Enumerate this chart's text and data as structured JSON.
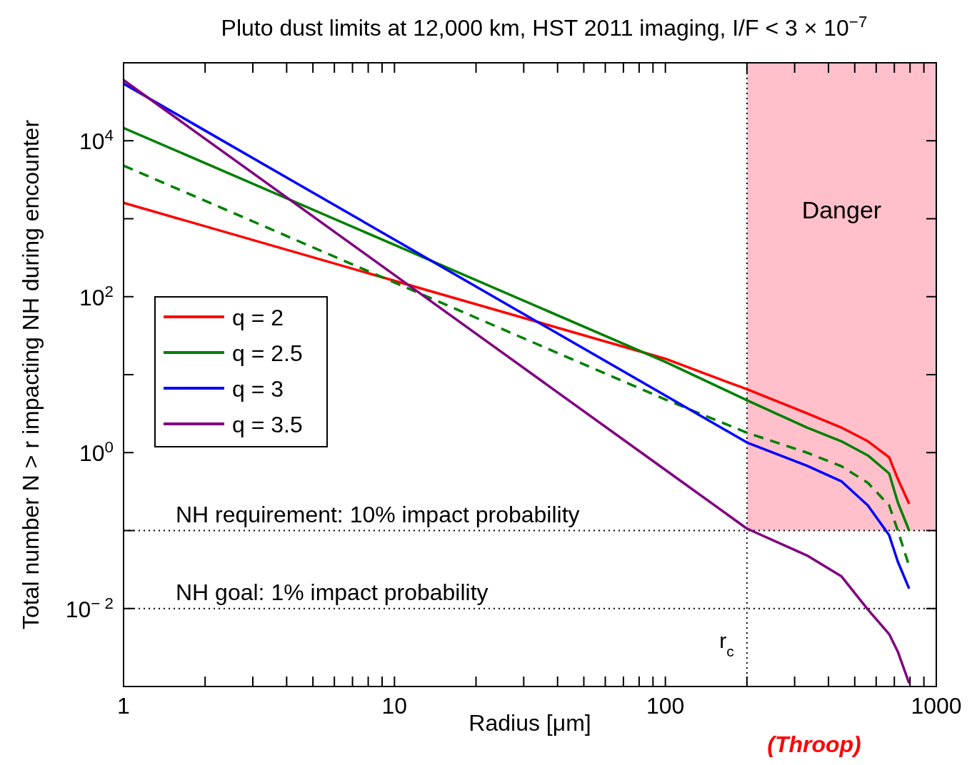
{
  "chart_data": {
    "type": "line",
    "title": "Pluto dust limits at 12,000 km, HST 2011 imaging, I/F < 3 × 10$^{−7}$",
    "xlabel": "Radius [μm]",
    "ylabel": "Total number N > r impacting NH during encounter",
    "log": "xy",
    "grid": false,
    "legend": "left",
    "xlim": [
      1,
      1000
    ],
    "ylim": [
      0.001,
      100000
    ],
    "xticks": [
      1,
      {
        "value": 2,
        "label": null
      },
      {
        "value": 3,
        "label": null
      },
      {
        "value": 4,
        "label": null
      },
      {
        "value": 5,
        "label": null
      },
      {
        "value": 6,
        "label": null
      },
      {
        "value": 7,
        "label": null
      },
      {
        "value": 8,
        "label": null
      },
      {
        "value": 9,
        "label": null
      },
      10,
      {
        "value": 20,
        "label": null
      },
      {
        "value": 30,
        "label": null
      },
      {
        "value": 40,
        "label": null
      },
      {
        "value": 50,
        "label": null
      },
      {
        "value": 60,
        "label": null
      },
      {
        "value": 70,
        "label": null
      },
      {
        "value": 80,
        "label": null
      },
      {
        "value": 90,
        "label": null
      },
      100,
      {
        "value": 200,
        "label": null
      },
      {
        "value": 300,
        "label": null
      },
      {
        "value": 400,
        "label": null
      },
      {
        "value": 500,
        "label": null
      },
      {
        "value": 600,
        "label": null
      },
      {
        "value": 700,
        "label": null
      },
      {
        "value": 800,
        "label": null
      },
      {
        "value": 900,
        "label": null
      },
      1000
    ],
    "yticks": [
      {
        "value": 0.001,
        "label": null
      },
      {
        "value": 0.01,
        "label": "10$^{− 2}$"
      },
      {
        "value": 0.1,
        "label": null
      },
      {
        "value": 1,
        "label": "10$^{0}$"
      },
      {
        "value": 10,
        "label": null
      },
      {
        "value": 100,
        "label": "10$^{2}$"
      },
      {
        "value": 1000,
        "label": null
      },
      {
        "value": 10000,
        "label": "10$^{4}$"
      },
      {
        "value": 100000,
        "label": null
      }
    ],
    "series": [
      {
        "name": "q = 2",
        "color": "#ff0000",
        "line_style": "solid",
        "x": [
          1,
          10,
          100,
          200,
          333,
          446,
          559,
          670,
          721,
          794
        ],
        "values": [
          1600,
          160,
          16,
          6.5,
          3.2,
          2.1,
          1.4,
          0.87,
          0.46,
          0.22
        ]
      },
      {
        "name": "q = 2.5",
        "color": "#008000",
        "line_style": "solid",
        "x": [
          1,
          10,
          100,
          200,
          333,
          446,
          559,
          670,
          721,
          794
        ],
        "values": [
          14600,
          462,
          14.6,
          4.7,
          2.1,
          1.4,
          0.92,
          0.54,
          0.23,
          0.1
        ]
      },
      {
        "color": "#008000",
        "line_style": "dashed",
        "x": [
          1,
          10,
          100,
          200,
          333,
          446,
          559,
          670,
          721,
          794
        ],
        "values": [
          4800,
          152,
          4.8,
          1.8,
          1.0,
          0.67,
          0.41,
          0.21,
          0.1,
          0.035
        ]
      },
      {
        "name": "q = 3",
        "color": "#0000ff",
        "line_style": "solid",
        "x": [
          1,
          10,
          100,
          200,
          333,
          446,
          559,
          670,
          721,
          794
        ],
        "values": [
          54000,
          540,
          5.4,
          1.35,
          0.68,
          0.43,
          0.21,
          0.087,
          0.04,
          0.018
        ]
      },
      {
        "name": "q = 3.5",
        "color": "#800080",
        "line_style": "solid",
        "x": [
          1,
          10,
          100,
          200,
          333,
          446,
          559,
          670,
          721,
          794
        ],
        "values": [
          60000,
          190,
          0.6,
          0.106,
          0.048,
          0.026,
          0.0097,
          0.0047,
          0.0028,
          0.0011
        ]
      }
    ],
    "ref_lines": [
      {
        "axis": "y",
        "value": 0.1,
        "label": "NH requirement: 10% impact probability",
        "line_style": "dotted",
        "color": "#000000"
      },
      {
        "axis": "y",
        "value": 0.01,
        "label": "NH goal: 1% impact probability",
        "line_style": "dotted",
        "color": "#000000"
      },
      {
        "axis": "x",
        "value": 200,
        "label": "r$_{c}$",
        "line_style": "dotted",
        "color": "#000000"
      }
    ],
    "bands": [
      {
        "axis": "x",
        "from": 200,
        "to": 1000,
        "label": "Danger",
        "color": "#ffc0cb"
      }
    ],
    "annotations": [
      "(Throop)"
    ]
  }
}
